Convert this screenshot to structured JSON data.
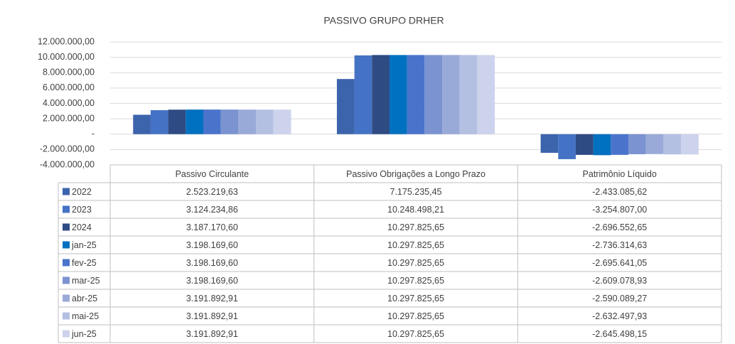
{
  "chart_data": {
    "type": "bar",
    "title": "PASSIVO GRUPO DRHER",
    "categories": [
      "Passivo Circulante",
      "Passivo Obrigações a Longo Prazo",
      "Patrimônio Líquido"
    ],
    "series": [
      {
        "name": "2022",
        "color": "#3c64ac",
        "values": [
          2523219.63,
          7175235.45,
          -2433085.62
        ],
        "value_labels": [
          "2.523.219,63",
          "7.175.235,45",
          "-2.433.085,62"
        ]
      },
      {
        "name": "2023",
        "color": "#4472c4",
        "values": [
          3124234.86,
          10248498.21,
          -3254807.0
        ],
        "value_labels": [
          "3.124.234,86",
          "10.248.498,21",
          "-3.254.807,00"
        ]
      },
      {
        "name": "2024",
        "color": "#2f4b84",
        "values": [
          3187170.6,
          10297825.65,
          -2696552.65
        ],
        "value_labels": [
          "3.187.170,60",
          "10.297.825,65",
          "-2.696.552,65"
        ]
      },
      {
        "name": "jan-25",
        "color": "#0070c0",
        "values": [
          3198169.6,
          10297825.65,
          -2736314.63
        ],
        "value_labels": [
          "3.198.169,60",
          "10.297.825,65",
          "-2.736.314,63"
        ]
      },
      {
        "name": "fev-25",
        "color": "#4a74cc",
        "values": [
          3198169.6,
          10297825.65,
          -2695641.05
        ],
        "value_labels": [
          "3.198.169,60",
          "10.297.825,65",
          "-2.695.641,05"
        ]
      },
      {
        "name": "mar-25",
        "color": "#7b93d0",
        "values": [
          3198169.6,
          10297825.65,
          -2609078.93
        ],
        "value_labels": [
          "3.198.169,60",
          "10.297.825,65",
          "-2.609.078,93"
        ]
      },
      {
        "name": "abr-25",
        "color": "#9aaad8",
        "values": [
          3191892.91,
          10297825.65,
          -2590089.27
        ],
        "value_labels": [
          "3.191.892,91",
          "10.297.825,65",
          "-2.590.089,27"
        ]
      },
      {
        "name": "mai-25",
        "color": "#b4c0e2",
        "values": [
          3191892.91,
          10297825.65,
          -2632497.93
        ],
        "value_labels": [
          "3.191.892,91",
          "10.297.825,65",
          "-2.632.497,93"
        ]
      },
      {
        "name": "jun-25",
        "color": "#cdd3ec",
        "values": [
          3191892.91,
          10297825.65,
          -2645498.15
        ],
        "value_labels": [
          "3.191.892,91",
          "10.297.825,65",
          "-2.645.498,15"
        ]
      }
    ],
    "ylim": [
      -4000000,
      12000000
    ],
    "yticks": [
      {
        "value": -4000000,
        "label": "-4.000.000,00"
      },
      {
        "value": -2000000,
        "label": "-2.000.000,00"
      },
      {
        "value": 0,
        "label": "-"
      },
      {
        "value": 2000000,
        "label": "2.000.000,00"
      },
      {
        "value": 4000000,
        "label": "4.000.000,00"
      },
      {
        "value": 6000000,
        "label": "6.000.000,00"
      },
      {
        "value": 8000000,
        "label": "8.000.000,00"
      },
      {
        "value": 10000000,
        "label": "10.000.000,00"
      },
      {
        "value": 12000000,
        "label": "12.000.000,00"
      }
    ],
    "grid": true
  }
}
